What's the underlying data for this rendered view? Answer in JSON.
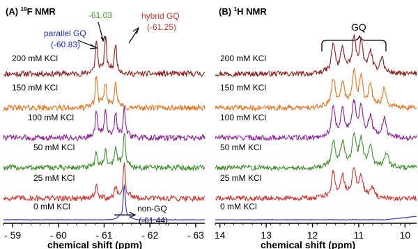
{
  "chart_data": [
    {
      "panel": "(A)",
      "title_nucleus_sup": "19",
      "title_rest": "F NMR",
      "type": "line",
      "xlabel": "chemical shift (ppm)",
      "x_ticks": [
        "- 59",
        "- 60",
        "- 61",
        "- 62",
        "- 63"
      ],
      "xlim": [
        -58.8,
        -63.2
      ],
      "x_reversed": true,
      "annotations": {
        "mid": "-61.03",
        "hybrid_line1": "hybrid GQ",
        "hybrid_line2": "(-61.25)",
        "parallel_line1": "parallel GQ",
        "parallel_line2": "(-60.83)",
        "nongq_line1": "non-GQ",
        "nongq_line2": "(-61.44)"
      },
      "series": [
        {
          "name": "200 mM KCl",
          "color": "#8B1A1A",
          "peaks": [
            [
              -60.83,
              0.9
            ],
            [
              -61.03,
              1.0
            ],
            [
              -61.25,
              0.85
            ]
          ]
        },
        {
          "name": "150 mM KCl",
          "color": "#E8721C",
          "peaks": [
            [
              -60.83,
              0.9
            ],
            [
              -61.03,
              0.7
            ],
            [
              -61.25,
              0.8
            ]
          ]
        },
        {
          "name": "100 mM KCl",
          "color": "#8E1E9B",
          "peaks": [
            [
              -60.83,
              0.75
            ],
            [
              -61.03,
              0.8
            ],
            [
              -61.25,
              0.7
            ],
            [
              -61.44,
              0.8
            ]
          ]
        },
        {
          "name": "50 mM KCl",
          "color": "#3F8F2A",
          "peaks": [
            [
              -60.83,
              0.45
            ],
            [
              -61.03,
              0.5
            ],
            [
              -61.25,
              0.6
            ],
            [
              -61.44,
              1.0
            ]
          ]
        },
        {
          "name": "25 mM KCl",
          "color": "#D0302C",
          "peaks": [
            [
              -60.83,
              0.35
            ],
            [
              -61.25,
              0.3
            ],
            [
              -61.44,
              1.0
            ]
          ]
        },
        {
          "name": "0 mM KCl",
          "color": "#1E2AD6",
          "peaks": [
            [
              -61.44,
              1.0
            ]
          ]
        }
      ]
    },
    {
      "panel": "(B)",
      "title_nucleus_sup": "1",
      "title_rest": "H NMR",
      "type": "line",
      "xlabel": "chemical shift (ppm)",
      "x_ticks": [
        "14",
        "13",
        "12",
        "11",
        "10"
      ],
      "xlim": [
        14.1,
        9.75
      ],
      "x_reversed": true,
      "bracket_label": "GQ",
      "bracket_range_ppm": [
        11.9,
        10.4
      ],
      "series": [
        {
          "name": "200 mM KCl",
          "color": "#8B1A1A",
          "peaks": [
            [
              11.55,
              0.9
            ],
            [
              11.35,
              0.7
            ],
            [
              11.1,
              1.0
            ],
            [
              10.95,
              0.9
            ],
            [
              10.75,
              0.6
            ],
            [
              10.5,
              0.5
            ]
          ]
        },
        {
          "name": "150 mM KCl",
          "color": "#E8721C",
          "peaks": [
            [
              11.55,
              0.9
            ],
            [
              11.35,
              0.7
            ],
            [
              11.1,
              1.0
            ],
            [
              10.95,
              0.9
            ],
            [
              10.75,
              0.6
            ],
            [
              10.45,
              0.6
            ]
          ]
        },
        {
          "name": "100 mM KCl",
          "color": "#8E1E9B",
          "peaks": [
            [
              11.55,
              0.9
            ],
            [
              11.35,
              0.8
            ],
            [
              11.1,
              1.0
            ],
            [
              10.95,
              0.9
            ],
            [
              10.75,
              0.6
            ],
            [
              10.45,
              0.6
            ]
          ]
        },
        {
          "name": "50 mM KCl",
          "color": "#3F8F2A",
          "peaks": [
            [
              11.55,
              0.8
            ],
            [
              11.35,
              0.7
            ],
            [
              11.1,
              1.0
            ],
            [
              10.95,
              0.8
            ],
            [
              10.75,
              0.6
            ],
            [
              10.4,
              0.5
            ]
          ]
        },
        {
          "name": "25 mM KCl",
          "color": "#D0302C",
          "peaks": [
            [
              11.55,
              0.8
            ],
            [
              11.35,
              0.6
            ],
            [
              11.1,
              0.9
            ],
            [
              10.95,
              0.6
            ],
            [
              10.7,
              0.3
            ]
          ]
        },
        {
          "name": "0 mM KCl",
          "color": "#1E2AD6",
          "peaks": []
        }
      ]
    }
  ]
}
